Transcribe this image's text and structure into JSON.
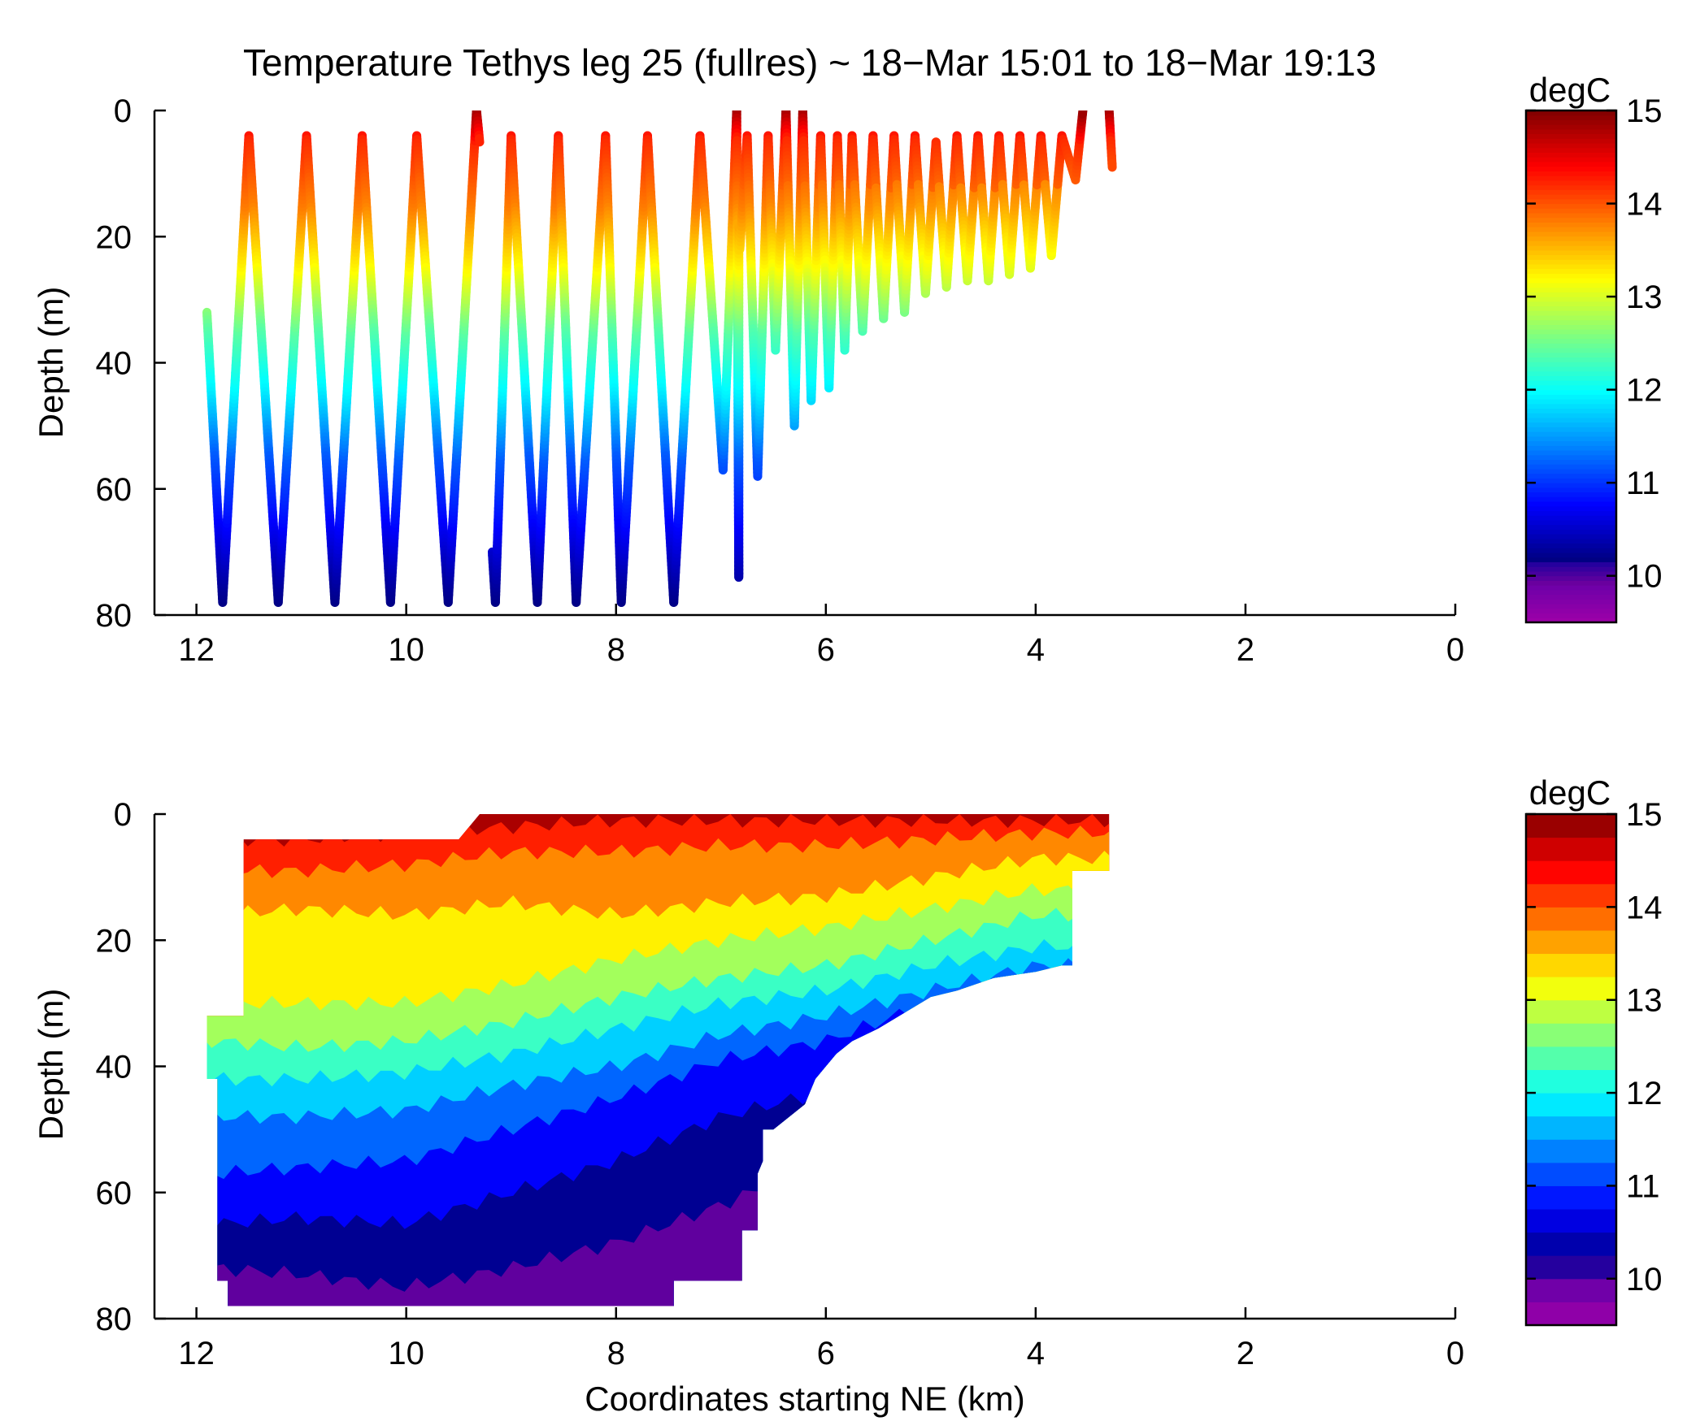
{
  "chart_data": [
    {
      "panel": "top",
      "type": "scatter",
      "title": "Temperature Tethys leg 25 (fullres) ~ 18−Mar 15:01 to 18−Mar 19:13",
      "xlabel": "",
      "ylabel": "Depth (m)",
      "xlim": [
        12.4,
        0
      ],
      "ylim": [
        80,
        0
      ],
      "x_ticks": [
        12,
        10,
        8,
        6,
        4,
        2,
        0
      ],
      "y_ticks": [
        0,
        20,
        40,
        60,
        80
      ],
      "x_tick_labels": [
        "12",
        "10",
        "8",
        "6",
        "4",
        "2",
        "0"
      ],
      "y_tick_labels": [
        "0",
        "20",
        "40",
        "60",
        "80"
      ],
      "colorbar": {
        "label": "degC",
        "range": [
          9.5,
          15
        ],
        "ticks": [
          10,
          11,
          12,
          13,
          14,
          15
        ],
        "tick_labels": [
          "10",
          "11",
          "12",
          "13",
          "14",
          "15"
        ]
      },
      "profile_vertices": [
        [
          11.9,
          32
        ],
        [
          11.75,
          78
        ],
        [
          11.5,
          4
        ],
        [
          11.22,
          78
        ],
        [
          10.95,
          4
        ],
        [
          10.68,
          78
        ],
        [
          10.42,
          4
        ],
        [
          10.15,
          78
        ],
        [
          9.9,
          4
        ],
        [
          9.6,
          78
        ],
        [
          9.33,
          0
        ],
        [
          9.3,
          5
        ]
      ],
      "segments": [
        [
          [
            9.18,
            70
          ],
          [
            9.15,
            78
          ],
          [
            9.0,
            4
          ],
          [
            8.75,
            78
          ],
          [
            8.55,
            4
          ],
          [
            8.38,
            78
          ],
          [
            8.1,
            4
          ],
          [
            7.95,
            78
          ],
          [
            7.7,
            4
          ],
          [
            7.45,
            78
          ],
          [
            7.2,
            4
          ],
          [
            6.98,
            57
          ],
          [
            6.85,
            0
          ],
          [
            6.83,
            74
          ],
          [
            6.83,
            18
          ]
        ],
        [
          [
            6.82,
            22
          ],
          [
            6.75,
            4
          ],
          [
            6.65,
            58
          ],
          [
            6.55,
            4
          ],
          [
            6.48,
            38
          ],
          [
            6.38,
            0
          ],
          [
            6.3,
            50
          ],
          [
            6.22,
            0
          ],
          [
            6.14,
            46
          ],
          [
            6.05,
            4
          ],
          [
            5.97,
            44
          ],
          [
            5.89,
            4
          ],
          [
            5.82,
            38
          ],
          [
            5.75,
            4
          ],
          [
            5.65,
            35
          ],
          [
            5.55,
            4
          ],
          [
            5.45,
            33
          ],
          [
            5.35,
            4
          ],
          [
            5.25,
            32
          ],
          [
            5.15,
            4
          ],
          [
            5.05,
            29
          ],
          [
            4.95,
            5
          ],
          [
            4.85,
            28
          ],
          [
            4.75,
            4
          ],
          [
            4.65,
            27
          ],
          [
            4.55,
            4
          ],
          [
            4.45,
            27
          ],
          [
            4.35,
            4
          ],
          [
            4.25,
            26
          ],
          [
            4.15,
            4
          ],
          [
            4.05,
            25
          ],
          [
            3.95,
            4
          ],
          [
            3.85,
            23
          ],
          [
            3.75,
            4
          ],
          [
            3.62,
            11
          ],
          [
            3.55,
            0
          ]
        ],
        [
          [
            3.3,
            0
          ],
          [
            3.27,
            9
          ]
        ]
      ],
      "temperature_profile": [
        [
          0,
          14.9
        ],
        [
          5,
          14.2
        ],
        [
          15,
          13.8
        ],
        [
          25,
          13.2
        ],
        [
          35,
          12.4
        ],
        [
          45,
          11.9
        ],
        [
          55,
          11.2
        ],
        [
          65,
          10.8
        ],
        [
          75,
          10.3
        ],
        [
          80,
          10.1
        ]
      ],
      "grid": false
    },
    {
      "panel": "bottom",
      "type": "heatmap",
      "title": "",
      "xlabel": "Coordinates starting NE (km)",
      "ylabel": "Depth (m)",
      "xlim": [
        12.4,
        0
      ],
      "ylim": [
        80,
        0
      ],
      "x_ticks": [
        12,
        10,
        8,
        6,
        4,
        2,
        0
      ],
      "y_ticks": [
        0,
        20,
        40,
        60,
        80
      ],
      "x_tick_labels": [
        "12",
        "10",
        "8",
        "6",
        "4",
        "2",
        "0"
      ],
      "y_tick_labels": [
        "0",
        "20",
        "40",
        "60",
        "80"
      ],
      "colorbar": {
        "label": "degC",
        "range": [
          9.5,
          15
        ],
        "ticks": [
          10,
          11,
          12,
          13,
          14,
          15
        ],
        "tick_labels": [
          "10",
          "11",
          "12",
          "13",
          "14",
          "15"
        ],
        "levels": 22
      },
      "data_region": [
        [
          11.9,
          32
        ],
        [
          11.55,
          32
        ],
        [
          11.55,
          4
        ],
        [
          9.5,
          4
        ],
        [
          9.3,
          0
        ],
        [
          3.3,
          0
        ],
        [
          3.3,
          9
        ],
        [
          3.65,
          9
        ],
        [
          3.65,
          24
        ],
        [
          3.75,
          24
        ],
        [
          4.0,
          25
        ],
        [
          4.4,
          26
        ],
        [
          4.75,
          28
        ],
        [
          5.0,
          29
        ],
        [
          5.3,
          32
        ],
        [
          5.5,
          34
        ],
        [
          5.75,
          36
        ],
        [
          5.9,
          38
        ],
        [
          6.1,
          42
        ],
        [
          6.2,
          46
        ],
        [
          6.5,
          50
        ],
        [
          6.6,
          50
        ],
        [
          6.6,
          55
        ],
        [
          6.65,
          57
        ],
        [
          6.65,
          66
        ],
        [
          6.8,
          66
        ],
        [
          6.8,
          74
        ],
        [
          7.45,
          74
        ],
        [
          7.45,
          78
        ],
        [
          11.7,
          78
        ],
        [
          11.7,
          74
        ],
        [
          11.8,
          74
        ],
        [
          11.8,
          42
        ],
        [
          11.9,
          42
        ]
      ],
      "isotherm_depths": {
        "x": [
          11.8,
          11.0,
          10.0,
          9.0,
          8.0,
          7.0,
          6.0,
          5.0,
          4.0
        ],
        "14.5": [
          4,
          4,
          3,
          2,
          1,
          1,
          1,
          1,
          1
        ],
        "14.0": [
          9,
          9,
          8,
          6,
          6,
          5,
          5,
          4,
          3
        ],
        "13.5": [
          16,
          15,
          16,
          14,
          16,
          14,
          13,
          10,
          7
        ],
        "13.0": [
          30,
          30,
          30,
          27,
          23,
          20,
          18,
          15,
          12
        ],
        "12.5": [
          36,
          37,
          36,
          33,
          29,
          26,
          24,
          20,
          16
        ],
        "12.0": [
          42,
          42,
          41,
          38,
          34,
          30,
          28,
          24,
          21
        ],
        "11.5": [
          48,
          48,
          47,
          43,
          40,
          35,
          32,
          28,
          24
        ],
        "11.0": [
          57,
          56,
          55,
          50,
          45,
          39,
          36,
          30,
          26
        ],
        "10.5": [
          65,
          64,
          65,
          60,
          55,
          48,
          44,
          36,
          28
        ],
        "10.2": [
          72,
          73,
          75,
          72,
          68,
          62,
          55,
          45,
          32
        ]
      },
      "grid": false
    }
  ]
}
